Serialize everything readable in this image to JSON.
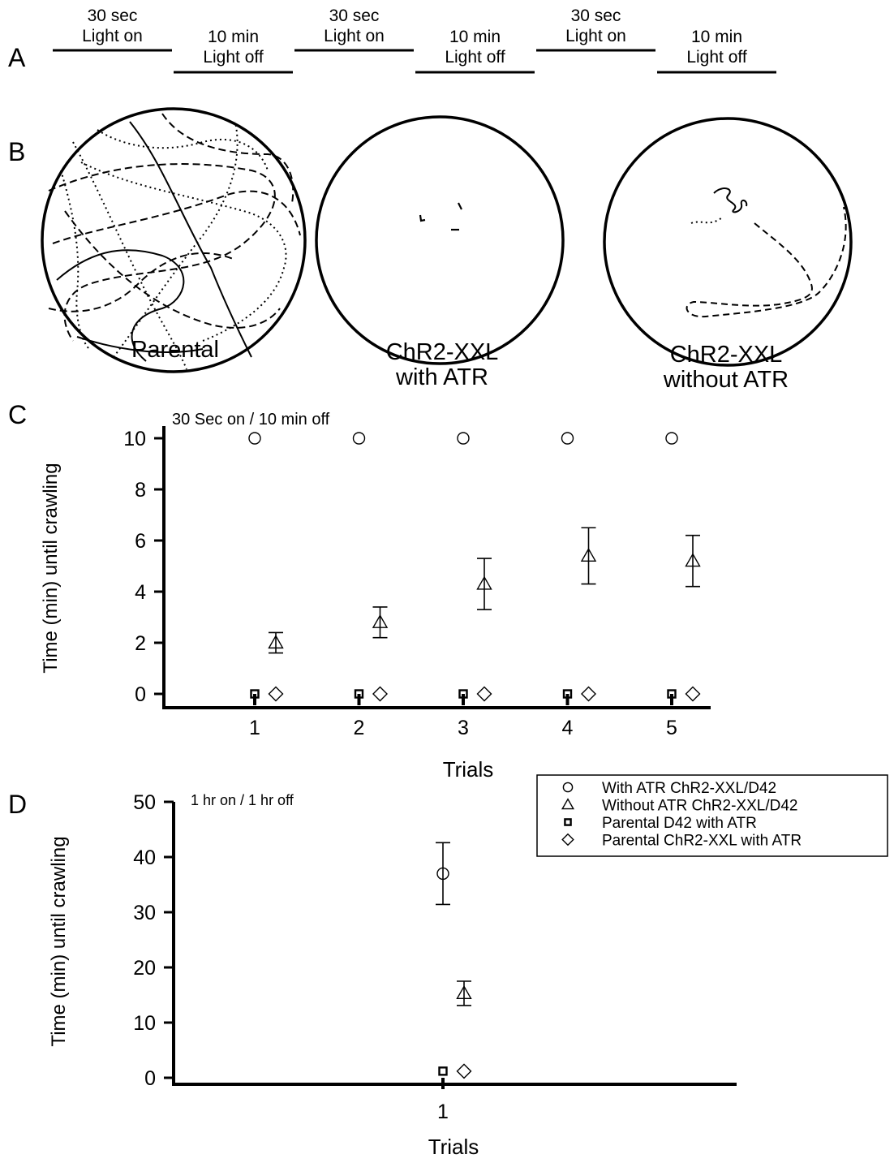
{
  "panels": {
    "A": {
      "letter": "A",
      "segments": [
        {
          "line1": "30 sec",
          "line2": "Light on",
          "level": "high"
        },
        {
          "line1": "10 min",
          "line2": "Light off",
          "level": "low"
        },
        {
          "line1": "30 sec",
          "line2": "Light on",
          "level": "high"
        },
        {
          "line1": "10 min",
          "line2": "Light off",
          "level": "low"
        },
        {
          "line1": "30 sec",
          "line2": "Light on",
          "level": "high"
        },
        {
          "line1": "10 min",
          "line2": "Light off",
          "level": "low"
        }
      ]
    },
    "B": {
      "letter": "B",
      "arenas": [
        {
          "label1": "Parental",
          "label2": ""
        },
        {
          "label1": "ChR2-XXL",
          "label2": "with ATR"
        },
        {
          "label1": "ChR2-XXL",
          "label2": "without ATR"
        }
      ]
    }
  },
  "legend": {
    "entries": [
      {
        "marker": "circle",
        "label": "With ATR ChR2-XXL/D42"
      },
      {
        "marker": "triangle",
        "label": "Without ATR ChR2-XXL/D42"
      },
      {
        "marker": "square",
        "label": "Parental D42 with ATR"
      },
      {
        "marker": "diamond",
        "label": "Parental ChR2-XXL with ATR"
      }
    ],
    "placement": "top-right of panel D"
  },
  "chart_data": [
    {
      "panel": "C",
      "type": "scatter",
      "annotation": "30 Sec on / 10 min off",
      "xlabel": "Trials",
      "ylabel": "Time (min) until crawling",
      "x": [
        1,
        2,
        3,
        4,
        5
      ],
      "xticks": [
        1,
        2,
        3,
        4,
        5
      ],
      "yticks": [
        0,
        2,
        4,
        6,
        8,
        10
      ],
      "ylim": [
        0,
        10
      ],
      "series": [
        {
          "marker": "circle",
          "values": [
            10,
            10,
            10,
            10,
            10
          ]
        },
        {
          "marker": "triangle",
          "values": [
            2.0,
            2.8,
            4.3,
            5.4,
            5.2
          ],
          "err": [
            0.4,
            0.6,
            1.0,
            1.1,
            1.0
          ]
        },
        {
          "marker": "square",
          "values": [
            0,
            0,
            0,
            0,
            0
          ]
        },
        {
          "marker": "diamond",
          "values": [
            0,
            0,
            0,
            0,
            0
          ]
        }
      ]
    },
    {
      "panel": "D",
      "type": "scatter",
      "annotation": "1 hr on / 1 hr off",
      "xlabel": "Trials",
      "ylabel": "Time (min) until crawling",
      "x": [
        1
      ],
      "xticks": [
        1
      ],
      "yticks": [
        0,
        10,
        20,
        30,
        40,
        50
      ],
      "ylim": [
        0,
        50
      ],
      "series": [
        {
          "marker": "circle",
          "values": [
            37
          ],
          "err": [
            5.6
          ]
        },
        {
          "marker": "triangle",
          "values": [
            15.3
          ],
          "err": [
            2.2
          ]
        },
        {
          "marker": "square",
          "values": [
            1.2
          ]
        },
        {
          "marker": "diamond",
          "values": [
            1.2
          ]
        }
      ]
    }
  ]
}
